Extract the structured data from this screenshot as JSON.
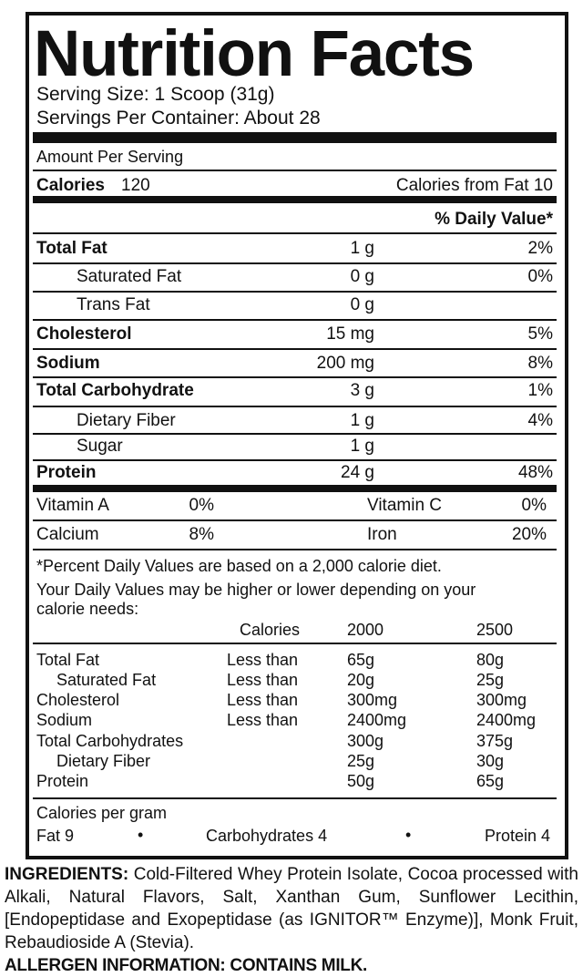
{
  "title": "Nutrition Facts",
  "serving_size": "Serving Size: 1 Scoop (31g)",
  "servings_per_container": "Servings Per Container: About 28",
  "amount_per_serving": "Amount Per Serving",
  "calories": {
    "label": "Calories",
    "value": "120",
    "from_fat": "Calories from Fat 10"
  },
  "daily_value_header": "% Daily Value*",
  "nutrients": [
    {
      "name": "Total Fat",
      "amount": "1 g",
      "dv": "2%"
    },
    {
      "name": "Saturated Fat",
      "amount": "0 g",
      "dv": "0%"
    },
    {
      "name": "Trans Fat",
      "amount": "0 g"
    },
    {
      "name": "Cholesterol",
      "amount": "15 mg",
      "dv": "5%"
    },
    {
      "name": "Sodium",
      "amount": "200 mg",
      "dv": "8%"
    },
    {
      "name": "Total Carbohydrate",
      "amount": "3 g",
      "dv": "1%"
    },
    {
      "name": "Dietary Fiber",
      "amount": "1 g",
      "dv": "4%"
    },
    {
      "name": "Sugar",
      "amount": "1 g"
    },
    {
      "name": "Protein",
      "amount": "24 g",
      "dv": "48%"
    }
  ],
  "vitamins": [
    [
      {
        "name": "Vitamin A",
        "dv": "0%"
      },
      {
        "name": "Vitamin C",
        "dv": "0%"
      }
    ],
    [
      {
        "name": "Calcium",
        "dv": "8%"
      },
      {
        "name": "Iron",
        "dv": "20%"
      }
    ]
  ],
  "footnote": [
    "*Percent Daily Values are based on a 2,000 calorie diet.",
    "Your Daily Values may be higher or lower depending on your",
    "calorie needs:"
  ],
  "dv_table": {
    "header": [
      "Calories",
      "2000",
      "2500"
    ],
    "rows": [
      {
        "name": "Total Fat",
        "qualifier": "Less than",
        "v2000": "65g",
        "v2500": "80g"
      },
      {
        "name": "Saturated Fat",
        "qualifier": "Less than",
        "v2000": "20g",
        "v2500": "25g"
      },
      {
        "name": "Cholesterol",
        "qualifier": "Less than",
        "v2000": "300mg",
        "v2500": "300mg"
      },
      {
        "name": "Sodium",
        "qualifier": "Less than",
        "v2000": "2400mg",
        "v2500": "2400mg"
      },
      {
        "name": "Total Carbohydrates",
        "v2000": "300g",
        "v2500": "375g"
      },
      {
        "name": "Dietary Fiber",
        "v2000": "25g",
        "v2500": "30g"
      },
      {
        "name": "Protein",
        "v2000": "50g",
        "v2500": "65g"
      }
    ]
  },
  "calories_per_gram": {
    "title": "Calories per gram",
    "items": [
      "Fat 9",
      "Carbohydrates 4",
      "Protein 4"
    ]
  },
  "ingredients": {
    "label": "INGREDIENTS:",
    "text": "Cold-Filtered Whey Protein Isolate, Cocoa processed with Alkali, Natural Flavors, Salt, Xanthan Gum, Sunflower Lecithin, [Endopeptidase and Exopeptidase (as IGNITOR™ Enzyme)], Monk Fruit, Rebaudioside A (Stevia)."
  },
  "allergen": "ALLERGEN INFORMATION: CONTAINS MILK."
}
